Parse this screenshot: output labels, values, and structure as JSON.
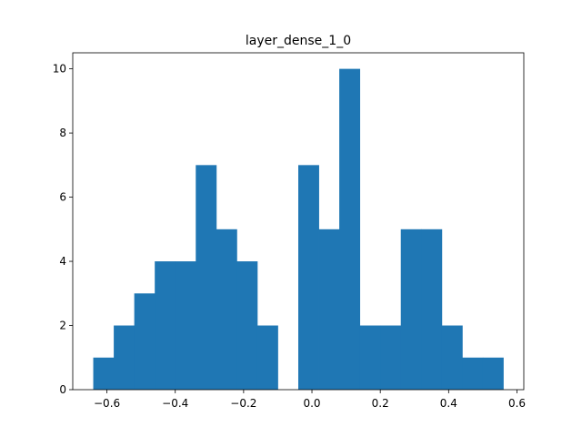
{
  "chart_data": {
    "type": "bar",
    "title": "layer_dense_1_0",
    "xlabel": "",
    "ylabel": "",
    "xlim": [
      -0.7,
      0.62
    ],
    "ylim": [
      0,
      10.5
    ],
    "grid": false,
    "color": "#1f77b4",
    "bins": [
      {
        "x0": -0.64,
        "x1": -0.58,
        "count": 1
      },
      {
        "x0": -0.58,
        "x1": -0.52,
        "count": 2
      },
      {
        "x0": -0.52,
        "x1": -0.46,
        "count": 3
      },
      {
        "x0": -0.46,
        "x1": -0.4,
        "count": 4
      },
      {
        "x0": -0.4,
        "x1": -0.34,
        "count": 4
      },
      {
        "x0": -0.34,
        "x1": -0.28,
        "count": 7
      },
      {
        "x0": -0.28,
        "x1": -0.22,
        "count": 5
      },
      {
        "x0": -0.22,
        "x1": -0.16,
        "count": 4
      },
      {
        "x0": -0.16,
        "x1": -0.1,
        "count": 2
      },
      {
        "x0": -0.1,
        "x1": -0.04,
        "count": 0
      },
      {
        "x0": -0.04,
        "x1": 0.02,
        "count": 7
      },
      {
        "x0": 0.02,
        "x1": 0.08,
        "count": 5
      },
      {
        "x0": 0.08,
        "x1": 0.14,
        "count": 10
      },
      {
        "x0": 0.14,
        "x1": 0.2,
        "count": 2
      },
      {
        "x0": 0.2,
        "x1": 0.26,
        "count": 2
      },
      {
        "x0": 0.26,
        "x1": 0.32,
        "count": 5
      },
      {
        "x0": 0.32,
        "x1": 0.38,
        "count": 5
      },
      {
        "x0": 0.38,
        "x1": 0.44,
        "count": 2
      },
      {
        "x0": 0.44,
        "x1": 0.5,
        "count": 1
      },
      {
        "x0": 0.5,
        "x1": 0.56,
        "count": 1
      }
    ],
    "x_ticks": [
      {
        "value": -0.6,
        "label": "−0.6"
      },
      {
        "value": -0.4,
        "label": "−0.4"
      },
      {
        "value": -0.2,
        "label": "−0.2"
      },
      {
        "value": 0.0,
        "label": "0.0"
      },
      {
        "value": 0.2,
        "label": "0.2"
      },
      {
        "value": 0.4,
        "label": "0.4"
      },
      {
        "value": 0.6,
        "label": "0.6"
      }
    ],
    "y_ticks": [
      {
        "value": 0,
        "label": "0"
      },
      {
        "value": 2,
        "label": "2"
      },
      {
        "value": 4,
        "label": "4"
      },
      {
        "value": 6,
        "label": "6"
      },
      {
        "value": 8,
        "label": "8"
      },
      {
        "value": 10,
        "label": "10"
      }
    ]
  }
}
